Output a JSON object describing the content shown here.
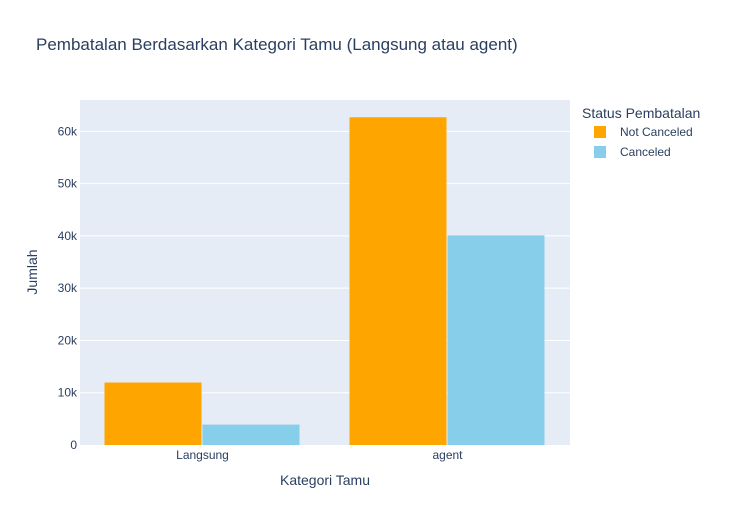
{
  "chart_data": {
    "type": "bar",
    "title": "Pembatalan Berdasarkan Kategori Tamu (Langsung atau agent)",
    "xlabel": "Kategori Tamu",
    "ylabel": "Jumlah",
    "categories": [
      "Langsung",
      "agent"
    ],
    "series": [
      {
        "name": "Not Canceled",
        "color": "#FFA500",
        "values": [
          11950,
          62700
        ]
      },
      {
        "name": "Canceled",
        "color": "#87CEEB",
        "values": [
          3900,
          40100
        ]
      }
    ],
    "ylim": [
      0,
      66000
    ],
    "yticks": [
      0,
      10000,
      20000,
      30000,
      40000,
      50000,
      60000
    ],
    "ytick_labels": [
      "0",
      "10k",
      "20k",
      "30k",
      "40k",
      "50k",
      "60k"
    ],
    "grid": true,
    "legend": {
      "title": "Status Pembatalan",
      "position": "top-right"
    },
    "plot_background": "#E5ECF6"
  }
}
